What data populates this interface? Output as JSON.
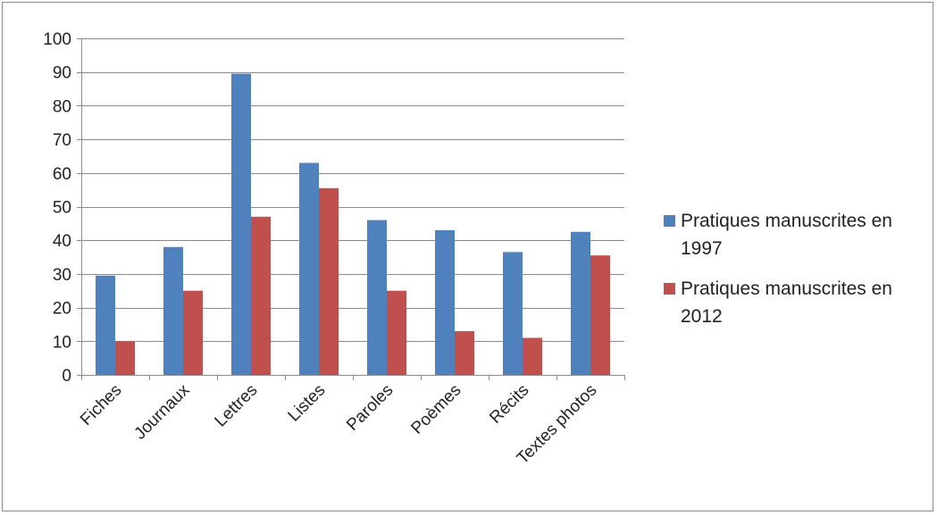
{
  "chart_data": {
    "type": "bar",
    "title": "",
    "xlabel": "",
    "ylabel": "",
    "ylim": [
      0,
      100
    ],
    "yticks": [
      0,
      10,
      20,
      30,
      40,
      50,
      60,
      70,
      80,
      90,
      100
    ],
    "grid": true,
    "legend_position": "right",
    "categories": [
      "Fiches",
      "Journaux",
      "Lettres",
      "Listes",
      "Paroles",
      "Poèmes",
      "Récits",
      "Textes photos"
    ],
    "series": [
      {
        "name": "Pratiques manuscrites en 1997",
        "color": "#4f81bd",
        "values": [
          29.5,
          38,
          89.5,
          63,
          46,
          43,
          36.5,
          42.5
        ]
      },
      {
        "name": "Pratiques manuscrites en 2012",
        "color": "#c0504d",
        "values": [
          10,
          25,
          47,
          55.5,
          25,
          13,
          11,
          35.5
        ]
      }
    ]
  }
}
